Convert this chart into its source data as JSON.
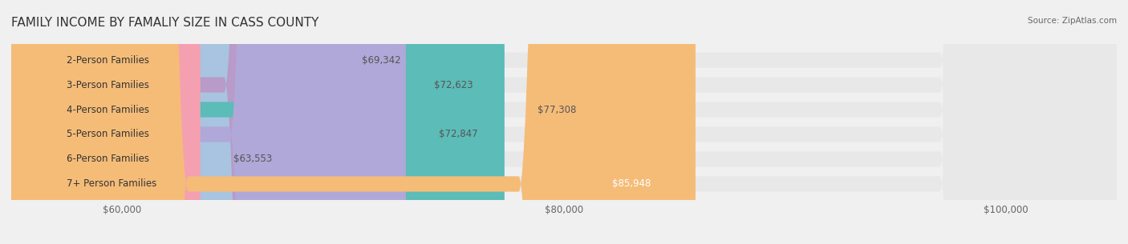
{
  "title": "FAMILY INCOME BY FAMALIY SIZE IN CASS COUNTY",
  "source": "Source: ZipAtlas.com",
  "categories": [
    "2-Person Families",
    "3-Person Families",
    "4-Person Families",
    "5-Person Families",
    "6-Person Families",
    "7+ Person Families"
  ],
  "values": [
    69342,
    72623,
    77308,
    72847,
    63553,
    85948
  ],
  "bar_colors": [
    "#a8c4e0",
    "#b89bc8",
    "#5bbcb8",
    "#b0a8d8",
    "#f4a0b0",
    "#f5bc78"
  ],
  "label_colors": [
    "#333333",
    "#333333",
    "#333333",
    "#333333",
    "#333333",
    "#ffffff"
  ],
  "value_labels": [
    "$69,342",
    "$72,623",
    "$77,308",
    "$72,847",
    "$63,553",
    "$85,948"
  ],
  "xmin": 55000,
  "xmax": 105000,
  "xticks": [
    60000,
    80000,
    100000
  ],
  "xtick_labels": [
    "$60,000",
    "$80,000",
    "$100,000"
  ],
  "background_color": "#f0f0f0",
  "bar_background": "#e8e8e8",
  "title_fontsize": 11,
  "bar_height": 0.62,
  "label_fontsize": 8.5,
  "value_fontsize": 8.5
}
